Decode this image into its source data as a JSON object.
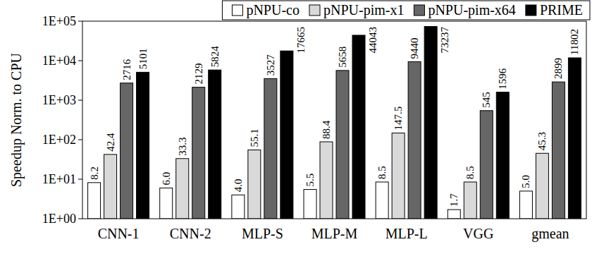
{
  "chart_data": {
    "type": "bar",
    "y_label": "Speedup Norm. to CPU",
    "categories": [
      "CNN-1",
      "CNN-2",
      "MLP-S",
      "MLP-M",
      "MLP-L",
      "VGG",
      "gmean"
    ],
    "series": [
      {
        "name": "pNPU-co",
        "color": "#ffffff",
        "values": [
          8.2,
          6.0,
          4.0,
          5.5,
          8.5,
          1.7,
          5.0
        ],
        "value_labels": [
          "8.2",
          "6.0",
          "4.0",
          "5.5",
          "8.5",
          "1.7",
          "5.0"
        ]
      },
      {
        "name": "pNPU-pim-x1",
        "color": "#d9d9d9",
        "values": [
          42.4,
          33.3,
          55.1,
          88.4,
          147.5,
          8.5,
          45.3
        ],
        "value_labels": [
          "42.4",
          "33.3",
          "55.1",
          "88.4",
          "147.5",
          "8.5",
          "45.3"
        ]
      },
      {
        "name": "pNPU-pim-x64",
        "color": "#666666",
        "values": [
          2716,
          2129,
          3527,
          5658,
          9440,
          545,
          2899
        ],
        "value_labels": [
          "2716",
          "2129",
          "3527",
          "5658",
          "9440",
          "545",
          "2899"
        ]
      },
      {
        "name": "PRIME",
        "color": "#000000",
        "values": [
          5101,
          5824,
          17665,
          44043,
          73237,
          1596,
          11802
        ],
        "value_labels": [
          "5101",
          "5824",
          "17665",
          "44043",
          "73237",
          "1596",
          "11802"
        ]
      }
    ],
    "ylim": [
      1,
      100000
    ],
    "yticks": [
      {
        "value": 1,
        "label": "1E+00"
      },
      {
        "value": 10,
        "label": "1E+01"
      },
      {
        "value": 100,
        "label": "1E+02"
      },
      {
        "value": 1000,
        "label": "1E+03"
      },
      {
        "value": 10000,
        "label": "1E+04"
      },
      {
        "value": 100000,
        "label": "1E+05"
      }
    ],
    "log": "y",
    "legend": "top",
    "data_labels": true,
    "grid": false
  }
}
